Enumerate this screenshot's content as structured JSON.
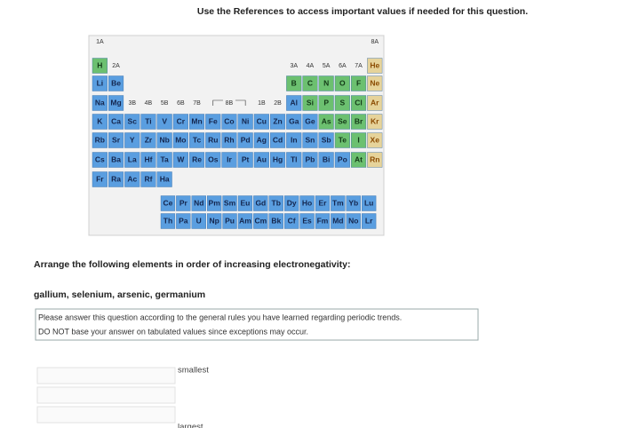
{
  "header": {
    "instruction": "Use the References to access important values if needed for this question."
  },
  "table": {
    "group_labels": {
      "first": "1A",
      "last": "8A",
      "a": [
        "2A",
        "3A",
        "4A",
        "5A",
        "6A",
        "7A"
      ],
      "b": [
        "3B",
        "4B",
        "5B",
        "6B",
        "7B",
        "8B",
        "1B",
        "2B"
      ]
    },
    "rows": [
      [
        "H",
        null,
        null,
        null,
        null,
        null,
        null,
        null,
        null,
        null,
        null,
        null,
        null,
        null,
        null,
        null,
        null,
        "He"
      ],
      [
        "Li",
        "Be",
        null,
        null,
        null,
        null,
        null,
        null,
        null,
        null,
        null,
        null,
        "B",
        "C",
        "N",
        "O",
        "F",
        "Ne"
      ],
      [
        "Na",
        "Mg",
        null,
        null,
        null,
        null,
        null,
        null,
        null,
        null,
        null,
        null,
        "Al",
        "Si",
        "P",
        "S",
        "Cl",
        "Ar"
      ],
      [
        "K",
        "Ca",
        "Sc",
        "Ti",
        "V",
        "Cr",
        "Mn",
        "Fe",
        "Co",
        "Ni",
        "Cu",
        "Zn",
        "Ga",
        "Ge",
        "As",
        "Se",
        "Br",
        "Kr"
      ],
      [
        "Rb",
        "Sr",
        "Y",
        "Zr",
        "Nb",
        "Mo",
        "Tc",
        "Ru",
        "Rh",
        "Pd",
        "Ag",
        "Cd",
        "In",
        "Sn",
        "Sb",
        "Te",
        "I",
        "Xe"
      ],
      [
        "Cs",
        "Ba",
        "La",
        "Hf",
        "Ta",
        "W",
        "Re",
        "Os",
        "Ir",
        "Pt",
        "Au",
        "Hg",
        "Tl",
        "Pb",
        "Bi",
        "Po",
        "At",
        "Rn"
      ],
      [
        "Fr",
        "Ra",
        "Ac",
        "Rf",
        "Ha"
      ]
    ],
    "lanthanides": [
      "Ce",
      "Pr",
      "Nd",
      "Pm",
      "Sm",
      "Eu",
      "Gd",
      "Tb",
      "Dy",
      "Ho",
      "Er",
      "Tm",
      "Yb",
      "Lu"
    ],
    "actinides": [
      "Th",
      "Pa",
      "U",
      "Np",
      "Pu",
      "Am",
      "Cm",
      "Bk",
      "Cf",
      "Es",
      "Fm",
      "Md",
      "No",
      "Lr"
    ]
  },
  "question": {
    "prompt": "Arrange the following elements in order of increasing electronegativity:",
    "elements": "gallium, selenium, arsenic, germanium",
    "note": [
      "Please answer this question according to the general rules you have learned regarding periodic trends.",
      "DO NOT base your answer on tabulated values since exceptions may occur."
    ],
    "smallest": "smallest",
    "largest": "largest"
  }
}
